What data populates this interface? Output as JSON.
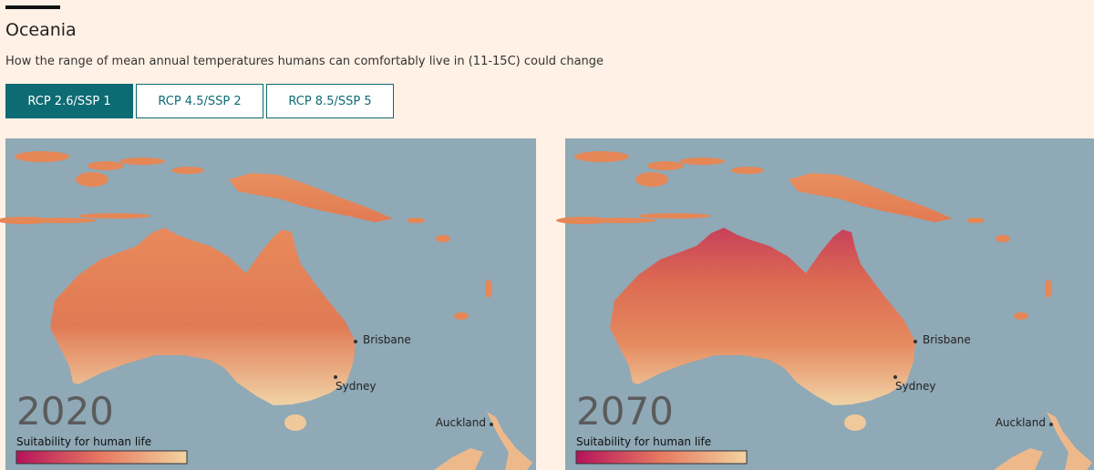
{
  "header": {
    "title": "Oceania",
    "subtitle": "How the range of mean annual temperatures humans can comfortably live in (11-15C) could change"
  },
  "tabs": [
    "RCP 2.6/SSP 1",
    "RCP 4.5/SSP 2",
    "RCP 8.5/SSP 5"
  ],
  "maps": [
    {
      "year": "2020",
      "legend_title": "Suitability for human life",
      "cities": [
        "Brisbane",
        "Sydney",
        "Auckland"
      ]
    },
    {
      "year": "2070",
      "legend_title": "Suitability for human life",
      "cities": [
        "Brisbane",
        "Sydney",
        "Auckland"
      ]
    }
  ]
}
